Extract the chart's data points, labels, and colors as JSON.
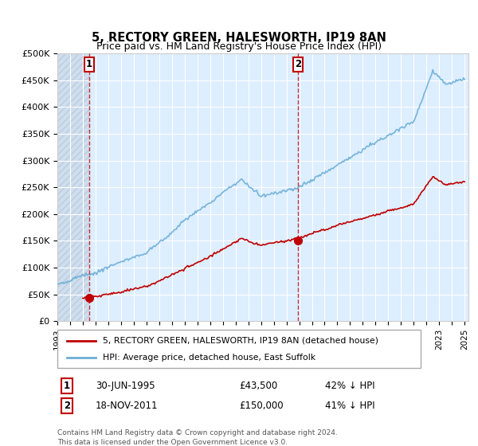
{
  "title": "5, RECTORY GREEN, HALESWORTH, IP19 8AN",
  "subtitle": "Price paid vs. HM Land Registry's House Price Index (HPI)",
  "ylim": [
    0,
    500000
  ],
  "yticks": [
    0,
    50000,
    100000,
    150000,
    200000,
    250000,
    300000,
    350000,
    400000,
    450000,
    500000
  ],
  "ytick_labels": [
    "£0",
    "£50K",
    "£100K",
    "£150K",
    "£200K",
    "£250K",
    "£300K",
    "£350K",
    "£400K",
    "£450K",
    "£500K"
  ],
  "hpi_color": "#6baed6",
  "price_color": "#c00000",
  "marker_color": "#c00000",
  "vline_color": "#c00000",
  "sale1_year": 1995.5,
  "sale1_price": 43500,
  "sale2_year": 2011.9,
  "sale2_price": 150000,
  "legend_line1": "5, RECTORY GREEN, HALESWORTH, IP19 8AN (detached house)",
  "legend_line2": "HPI: Average price, detached house, East Suffolk",
  "table_row1_label": "1",
  "table_row1_date": "30-JUN-1995",
  "table_row1_price": "£43,500",
  "table_row1_hpi": "42% ↓ HPI",
  "table_row2_label": "2",
  "table_row2_date": "18-NOV-2011",
  "table_row2_price": "£150,000",
  "table_row2_hpi": "41% ↓ HPI",
  "footnote": "Contains HM Land Registry data © Crown copyright and database right 2024.\nThis data is licensed under the Open Government Licence v3.0.",
  "bg_color": "#ffffff",
  "plot_bg": "#ddeeff",
  "grid_color": "#ffffff",
  "hatch_bg": "#c8d8e8"
}
